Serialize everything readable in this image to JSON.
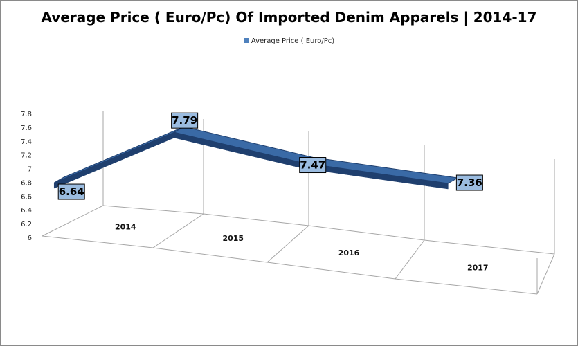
{
  "chart_data": {
    "type": "line",
    "title": "Average Price ( Euro/Pc) Of Imported Denim Apparels | 2014-17",
    "categories": [
      "2014",
      "2015",
      "2016",
      "2017"
    ],
    "series": [
      {
        "name": "Average Price ( Euro/Pc)",
        "values": [
          6.64,
          7.79,
          7.47,
          7.36
        ]
      }
    ],
    "data_labels": [
      "6.64",
      "7.79",
      "7.47",
      "7.36"
    ],
    "y_ticks": [
      "6",
      "6.2",
      "6.4",
      "6.6",
      "6.8",
      "7",
      "7.2",
      "7.4",
      "7.6",
      "7.8"
    ],
    "ylim": [
      6,
      7.8
    ],
    "grid": false,
    "legend_position": "top",
    "style": "3d-ribbon",
    "colors": {
      "series": "#4f81bd",
      "ribbon_face": "#3a6aa6",
      "ribbon_edge": "#1f3f6e",
      "label_fill": "#9bbce0"
    }
  }
}
